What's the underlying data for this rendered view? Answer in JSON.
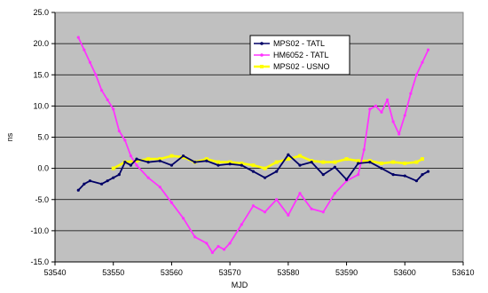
{
  "chart_data": {
    "type": "line",
    "title": "",
    "xlabel": "MJD",
    "ylabel": "ns",
    "xlim": [
      53540,
      53610
    ],
    "ylim": [
      -15,
      25
    ],
    "x_ticks": [
      53540,
      53550,
      53560,
      53570,
      53580,
      53590,
      53600,
      53610
    ],
    "y_ticks": [
      -15,
      -10,
      -5,
      0,
      5,
      10,
      15,
      20,
      25
    ],
    "x_tick_labels": [
      "53540",
      "53550",
      "53560",
      "53570",
      "53580",
      "53590",
      "53600",
      "53610"
    ],
    "y_tick_labels": [
      "-15.0",
      "-10.0",
      "-5.0",
      "0.0",
      "5.0",
      "10.0",
      "15.0",
      "20.0",
      "25.0"
    ],
    "grid": "horizontal",
    "plot_background": "#c0c0c0",
    "legend_position": "top-center",
    "series": [
      {
        "name": "MPS02 - TATL",
        "color": "#000066",
        "marker": "dot",
        "x": [
          53544,
          53545,
          53546,
          53548,
          53549,
          53550,
          53551,
          53552,
          53553,
          53554,
          53556,
          53558,
          53560,
          53562,
          53564,
          53566,
          53568,
          53570,
          53572,
          53574,
          53576,
          53578,
          53580,
          53582,
          53584,
          53586,
          53588,
          53590,
          53592,
          53594,
          53596,
          53598,
          53600,
          53602,
          53603,
          53604
        ],
        "y": [
          -3.5,
          -2.5,
          -2.0,
          -2.5,
          -2.0,
          -1.5,
          -1.0,
          1.0,
          0.5,
          1.5,
          1.0,
          1.2,
          0.5,
          2.0,
          1.0,
          1.2,
          0.5,
          0.7,
          0.5,
          -0.5,
          -1.5,
          -0.5,
          2.2,
          0.5,
          1.0,
          -1.0,
          0.2,
          -1.8,
          0.8,
          1.0,
          0.0,
          -1.0,
          -1.2,
          -2.0,
          -1.0,
          -0.5
        ]
      },
      {
        "name": "HM6052 - TATL",
        "color": "#ff33ff",
        "marker": "dot",
        "x": [
          53544,
          53545,
          53546,
          53547,
          53548,
          53549,
          53550,
          53551,
          53552,
          53553,
          53554,
          53556,
          53558,
          53560,
          53562,
          53564,
          53566,
          53567,
          53568,
          53569,
          53570,
          53572,
          53574,
          53576,
          53578,
          53580,
          53582,
          53584,
          53586,
          53588,
          53590,
          53592,
          53593,
          53594,
          53595,
          53596,
          53597,
          53598,
          53599,
          53600,
          53601,
          53602,
          53603,
          53604
        ],
        "y": [
          21.0,
          19.0,
          17.0,
          15.0,
          12.5,
          11.0,
          9.5,
          6.0,
          4.5,
          2.0,
          0.5,
          -1.5,
          -3.0,
          -5.5,
          -8.0,
          -11.0,
          -12.0,
          -13.5,
          -12.5,
          -13.0,
          -12.0,
          -9.0,
          -6.0,
          -7.0,
          -5.0,
          -7.5,
          -4.0,
          -6.5,
          -7.0,
          -4.0,
          -2.0,
          -1.0,
          3.0,
          9.5,
          10.0,
          9.0,
          11.0,
          7.5,
          5.5,
          8.5,
          12.0,
          15.0,
          17.0,
          19.0
        ]
      },
      {
        "name": "MPS02 - USNO",
        "color": "#ffff00",
        "marker": "square",
        "x": [
          53550,
          53552,
          53554,
          53556,
          53558,
          53560,
          53562,
          53564,
          53566,
          53568,
          53570,
          53572,
          53574,
          53576,
          53578,
          53580,
          53582,
          53584,
          53586,
          53588,
          53590,
          53592,
          53594,
          53596,
          53598,
          53600,
          53602,
          53603
        ],
        "y": [
          0.0,
          1.0,
          1.2,
          1.5,
          1.5,
          2.0,
          1.8,
          1.0,
          1.5,
          1.0,
          1.0,
          0.8,
          0.5,
          0.0,
          1.0,
          1.5,
          2.0,
          1.2,
          1.0,
          1.0,
          1.5,
          1.2,
          1.2,
          0.8,
          1.0,
          0.8,
          1.0,
          1.5
        ]
      }
    ]
  }
}
